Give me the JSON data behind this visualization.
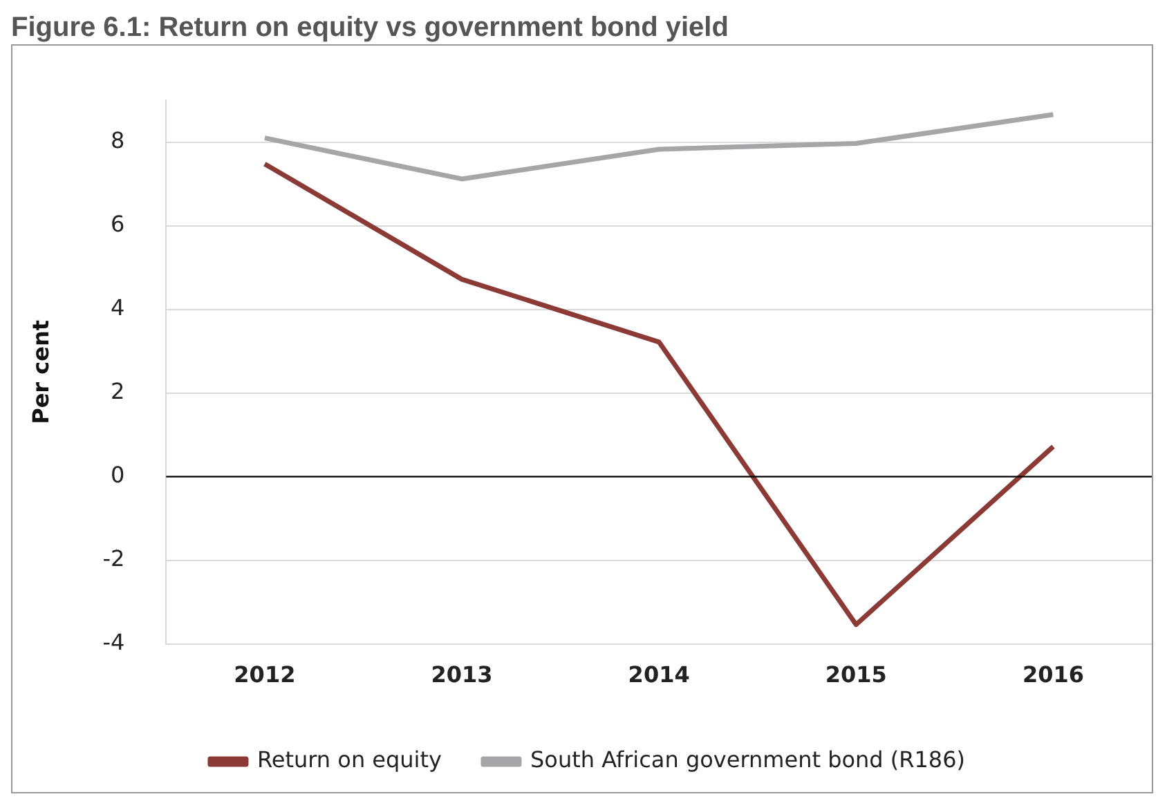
{
  "chart_data": {
    "type": "line",
    "title": "Figure 6.1: Return on equity vs government bond yield",
    "ylabel": "Per cent",
    "categories": [
      "2012",
      "2013",
      "2014",
      "2015",
      "2016"
    ],
    "series": [
      {
        "name": "Return on equity",
        "color": "#8b3a36",
        "values": [
          7.48,
          4.72,
          3.22,
          -3.54,
          0.72
        ]
      },
      {
        "name": "South African government bond (R186)",
        "color": "#a6a6a8",
        "values": [
          8.1,
          7.12,
          7.83,
          7.97,
          8.66
        ]
      }
    ],
    "ylim": [
      -4,
      9
    ],
    "yticks": [
      -4,
      -2,
      0,
      2,
      4,
      6,
      8
    ],
    "grid": "y",
    "legend": "bottom",
    "marker": "none",
    "line_style": "solid",
    "ref_lines": [
      {
        "axis": "y",
        "value": 0,
        "color": "#000000"
      }
    ]
  }
}
